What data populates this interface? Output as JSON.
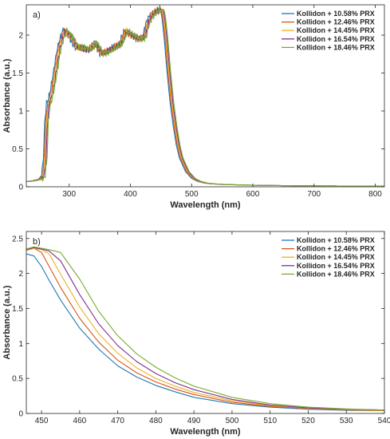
{
  "chart_data": [
    {
      "type": "line",
      "panel_label": "a)",
      "xlabel": "Wavelength (nm)",
      "ylabel": "Absorbance (a.u.)",
      "xlim": [
        230,
        815
      ],
      "ylim": [
        0,
        2.4
      ],
      "xticks": [
        300,
        400,
        500,
        600,
        700,
        800
      ],
      "yticks": [
        0,
        0.5,
        1,
        1.5,
        2
      ],
      "xtick_labels": [
        "300",
        "400",
        "500",
        "600",
        "700",
        "800"
      ],
      "ytick_labels": [
        "0",
        "0.5",
        "1",
        "1.5",
        "2"
      ],
      "grid": false,
      "legend_position": "top-right",
      "base_curve": {
        "x": [
          230,
          240,
          250,
          255,
          258,
          260,
          263,
          266,
          270,
          275,
          280,
          285,
          290,
          295,
          300,
          310,
          320,
          330,
          340,
          350,
          360,
          370,
          380,
          390,
          400,
          410,
          420,
          425,
          430,
          435,
          440,
          445,
          448,
          450,
          452,
          455,
          460,
          465,
          470,
          475,
          480,
          490,
          500,
          510,
          520,
          530,
          550,
          600,
          650,
          700,
          750,
          800,
          815
        ],
        "y": [
          0.07,
          0.08,
          0.1,
          0.15,
          0.4,
          0.85,
          1.1,
          1.15,
          1.3,
          1.55,
          1.8,
          1.95,
          2.07,
          2.02,
          1.97,
          1.84,
          1.83,
          1.8,
          1.9,
          1.76,
          1.78,
          1.84,
          1.87,
          2.05,
          2.0,
          1.95,
          1.97,
          2.15,
          2.24,
          2.28,
          2.32,
          2.33,
          2.34,
          2.3,
          2.2,
          1.97,
          1.5,
          1.1,
          0.8,
          0.55,
          0.38,
          0.2,
          0.11,
          0.07,
          0.05,
          0.04,
          0.03,
          0.02,
          0.015,
          0.012,
          0.01,
          0.01,
          0.01
        ]
      },
      "series": [
        {
          "name": "Kollidon + 10.58% PRX",
          "color": "#1f77b4",
          "shift": 0
        },
        {
          "name": "Kollidon + 12.46% PRX",
          "color": "#d9541a",
          "shift": 1.5
        },
        {
          "name": "Kollidon + 14.45% PRX",
          "color": "#edb120",
          "shift": 3
        },
        {
          "name": "Kollidon + 16.54% PRX",
          "color": "#7e2f8e",
          "shift": 4.5
        },
        {
          "name": "Kollidon + 18.46% PRX",
          "color": "#77ac30",
          "shift": 6
        }
      ]
    },
    {
      "type": "line",
      "panel_label": "b)",
      "xlabel": "Wavelength (nm)",
      "ylabel": "Absorbance (a.u.)",
      "xlim": [
        446,
        540
      ],
      "ylim": [
        0,
        2.6
      ],
      "xticks": [
        450,
        460,
        470,
        480,
        490,
        500,
        510,
        520,
        530,
        540
      ],
      "yticks": [
        0,
        0.5,
        1,
        1.5,
        2,
        2.5
      ],
      "xtick_labels": [
        "450",
        "460",
        "470",
        "480",
        "490",
        "500",
        "510",
        "520",
        "530",
        "540"
      ],
      "ytick_labels": [
        "0",
        "0.5",
        "1",
        "1.5",
        "2",
        "2.5"
      ],
      "grid": false,
      "legend_position": "top-right",
      "series": [
        {
          "name": "Kollidon + 10.58% PRX",
          "color": "#1f77b4",
          "x": [
            446,
            448,
            450,
            452,
            455,
            460,
            465,
            470,
            475,
            480,
            485,
            490,
            500,
            510,
            520,
            530,
            540
          ],
          "y": [
            2.28,
            2.25,
            2.1,
            1.9,
            1.62,
            1.22,
            0.92,
            0.68,
            0.52,
            0.4,
            0.31,
            0.23,
            0.14,
            0.09,
            0.06,
            0.045,
            0.04
          ]
        },
        {
          "name": "Kollidon + 12.46% PRX",
          "color": "#d9541a",
          "x": [
            446,
            448,
            450,
            452,
            455,
            460,
            465,
            470,
            475,
            480,
            485,
            490,
            500,
            510,
            520,
            530,
            540
          ],
          "y": [
            2.33,
            2.36,
            2.3,
            2.1,
            1.8,
            1.36,
            1.02,
            0.76,
            0.58,
            0.45,
            0.35,
            0.27,
            0.16,
            0.1,
            0.07,
            0.05,
            0.04
          ]
        },
        {
          "name": "Kollidon + 14.45% PRX",
          "color": "#edb120",
          "x": [
            446,
            448,
            450,
            452,
            455,
            460,
            465,
            470,
            475,
            480,
            485,
            490,
            500,
            510,
            520,
            530,
            540
          ],
          "y": [
            2.33,
            2.36,
            2.34,
            2.28,
            1.99,
            1.52,
            1.14,
            0.86,
            0.65,
            0.5,
            0.39,
            0.3,
            0.18,
            0.11,
            0.075,
            0.055,
            0.045
          ]
        },
        {
          "name": "Kollidon + 16.54% PRX",
          "color": "#7e2f8e",
          "x": [
            446,
            448,
            450,
            452,
            455,
            460,
            465,
            470,
            475,
            480,
            485,
            490,
            500,
            510,
            520,
            530,
            540
          ],
          "y": [
            2.34,
            2.37,
            2.35,
            2.32,
            2.18,
            1.7,
            1.28,
            0.97,
            0.74,
            0.57,
            0.44,
            0.34,
            0.2,
            0.12,
            0.08,
            0.06,
            0.05
          ]
        },
        {
          "name": "Kollidon + 18.46% PRX",
          "color": "#77ac30",
          "x": [
            446,
            448,
            450,
            452,
            455,
            460,
            465,
            470,
            475,
            480,
            485,
            490,
            500,
            510,
            520,
            530,
            540
          ],
          "y": [
            2.35,
            2.38,
            2.36,
            2.34,
            2.3,
            1.92,
            1.46,
            1.11,
            0.85,
            0.66,
            0.51,
            0.39,
            0.23,
            0.14,
            0.09,
            0.065,
            0.05
          ]
        }
      ]
    }
  ]
}
